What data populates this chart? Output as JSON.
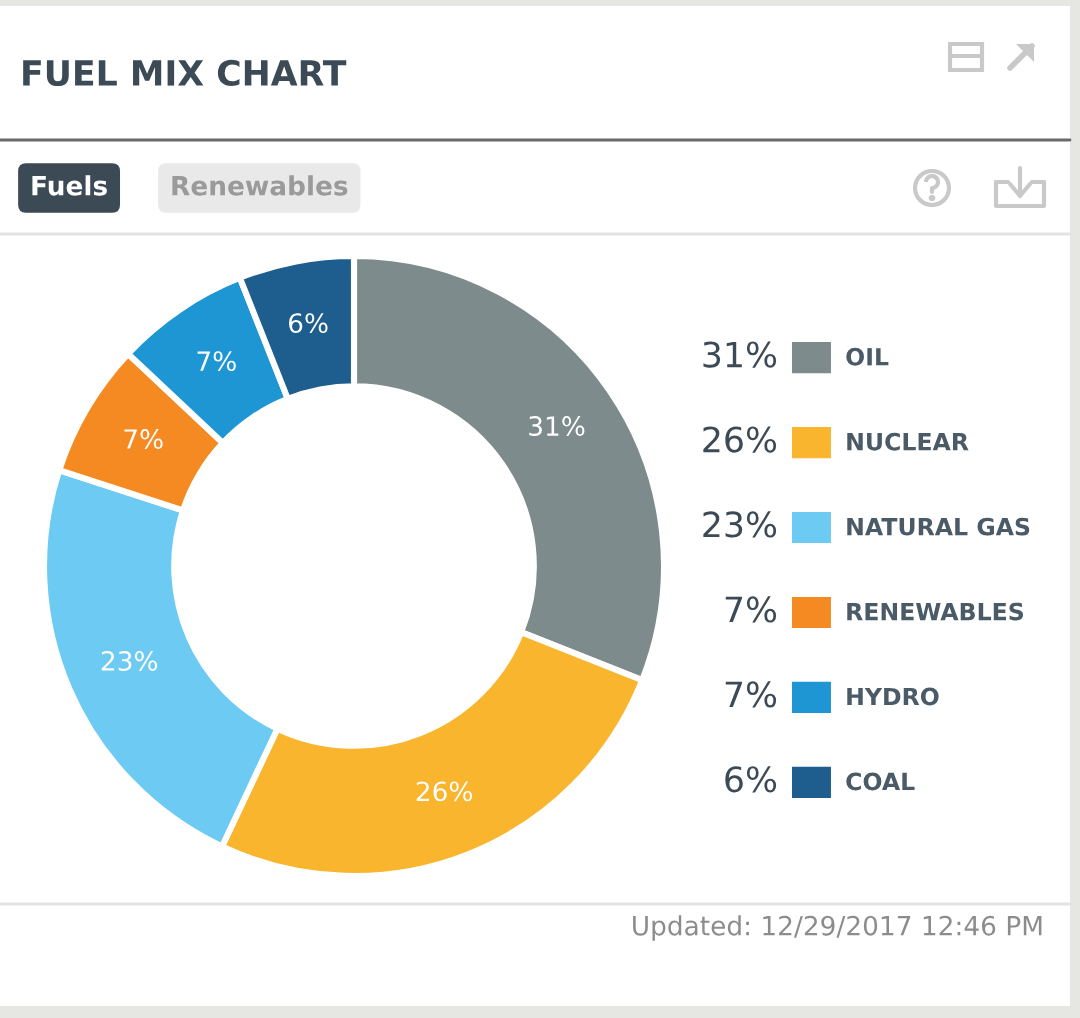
{
  "chart_data": {
    "type": "donut",
    "title": "FUEL MIX CHART",
    "categories": [
      "OIL",
      "NUCLEAR",
      "NATURAL GAS",
      "RENEWABLES",
      "HYDRO",
      "COAL"
    ],
    "values": [
      31,
      26,
      23,
      7,
      7,
      6
    ],
    "colors": [
      "#7d8b8c",
      "#f9b52e",
      "#6dcbf3",
      "#f48a21",
      "#1e96d4",
      "#1d5e8e"
    ],
    "value_labels": [
      "31%",
      "26%",
      "23%",
      "7%",
      "7%",
      "6%"
    ],
    "legend": "right",
    "annotations": [
      "Fuels",
      "Renewables",
      "Updated: 12/29/2017 12:46 PM"
    ]
  }
}
